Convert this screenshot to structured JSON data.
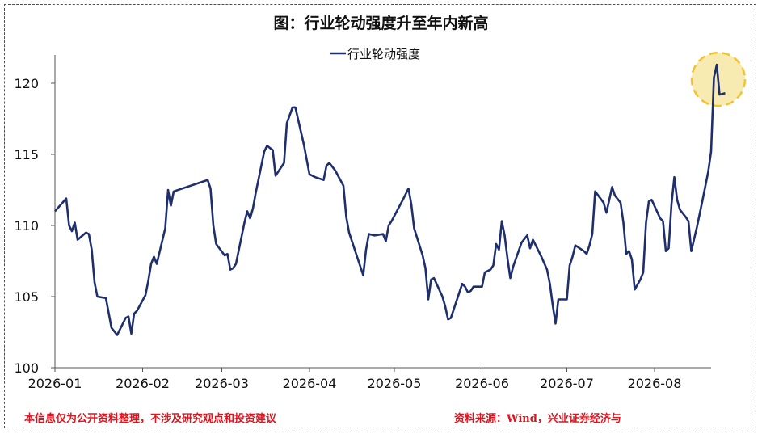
{
  "title": "图：行业轮动强度升至年内新高",
  "footnote_left": "本信息仅为公开资料整理，不涉及研究观点和投资建议",
  "footnote_right": "资料来源：Wind，兴业证券经济与",
  "colors": {
    "line": "#1f2f6e",
    "highlight_fill": "#f7e7a3",
    "highlight_stroke": "#f2c230",
    "footnote": "#e0141e",
    "frame": "#2f4fa8"
  },
  "chart_data": {
    "type": "line",
    "title": "图：行业轮动强度升至年内新高",
    "legend": {
      "position": "top-center",
      "entries": [
        "行业轮动强度"
      ]
    },
    "ylim": [
      100,
      122
    ],
    "yticks": [
      100,
      105,
      110,
      115,
      120
    ],
    "xticks": [
      "2026-01",
      "2026-02",
      "2026-03",
      "2026-04",
      "2026-05",
      "2026-06",
      "2026-07",
      "2026-08"
    ],
    "grid": false,
    "annotation": "highlight circle around latest peak",
    "series": [
      {
        "name": "行业轮动强度",
        "points": [
          [
            "2026-01-01",
            111.0
          ],
          [
            "2026-01-05",
            111.9
          ],
          [
            "2026-01-06",
            110.0
          ],
          [
            "2026-01-07",
            109.6
          ],
          [
            "2026-01-08",
            110.2
          ],
          [
            "2026-01-09",
            109.0
          ],
          [
            "2026-01-12",
            109.5
          ],
          [
            "2026-01-13",
            109.4
          ],
          [
            "2026-01-14",
            108.3
          ],
          [
            "2026-01-15",
            106.0
          ],
          [
            "2026-01-16",
            105.0
          ],
          [
            "2026-01-19",
            104.9
          ],
          [
            "2026-01-21",
            102.8
          ],
          [
            "2026-01-23",
            102.3
          ],
          [
            "2026-01-26",
            103.5
          ],
          [
            "2026-01-27",
            103.6
          ],
          [
            "2026-01-28",
            102.4
          ],
          [
            "2026-01-29",
            103.8
          ],
          [
            "2026-01-30",
            104.0
          ],
          [
            "2026-02-02",
            105.1
          ],
          [
            "2026-02-03",
            106.1
          ],
          [
            "2026-02-04",
            107.3
          ],
          [
            "2026-02-05",
            107.8
          ],
          [
            "2026-02-06",
            107.3
          ],
          [
            "2026-02-09",
            109.8
          ],
          [
            "2026-02-10",
            112.5
          ],
          [
            "2026-02-11",
            111.4
          ],
          [
            "2026-02-12",
            112.4
          ],
          [
            "2026-02-24",
            113.2
          ],
          [
            "2026-02-25",
            112.6
          ],
          [
            "2026-02-26",
            110.0
          ],
          [
            "2026-02-27",
            108.7
          ],
          [
            "2026-03-02",
            107.9
          ],
          [
            "2026-03-03",
            108.0
          ],
          [
            "2026-03-04",
            106.9
          ],
          [
            "2026-03-05",
            107.0
          ],
          [
            "2026-03-06",
            107.3
          ],
          [
            "2026-03-09",
            110.2
          ],
          [
            "2026-03-10",
            111.0
          ],
          [
            "2026-03-11",
            110.5
          ],
          [
            "2026-03-12",
            111.2
          ],
          [
            "2026-03-13",
            112.3
          ],
          [
            "2026-03-16",
            115.2
          ],
          [
            "2026-03-17",
            115.6
          ],
          [
            "2026-03-19",
            115.3
          ],
          [
            "2026-03-20",
            113.5
          ],
          [
            "2026-03-23",
            114.4
          ],
          [
            "2026-03-24",
            117.2
          ],
          [
            "2026-03-26",
            118.3
          ],
          [
            "2026-03-27",
            118.3
          ],
          [
            "2026-03-30",
            115.7
          ],
          [
            "2026-04-01",
            113.6
          ],
          [
            "2026-04-03",
            113.4
          ],
          [
            "2026-04-06",
            113.2
          ],
          [
            "2026-04-07",
            114.2
          ],
          [
            "2026-04-08",
            114.4
          ],
          [
            "2026-04-10",
            113.9
          ],
          [
            "2026-04-13",
            112.8
          ],
          [
            "2026-04-14",
            110.6
          ],
          [
            "2026-04-15",
            109.5
          ],
          [
            "2026-04-17",
            108.3
          ],
          [
            "2026-04-20",
            106.5
          ],
          [
            "2026-04-21",
            108.3
          ],
          [
            "2026-04-22",
            109.4
          ],
          [
            "2026-04-24",
            109.3
          ],
          [
            "2026-04-27",
            109.4
          ],
          [
            "2026-04-28",
            108.9
          ],
          [
            "2026-04-29",
            110.0
          ],
          [
            "2026-04-30",
            110.3
          ],
          [
            "2026-05-04",
            111.8
          ],
          [
            "2026-05-06",
            112.6
          ],
          [
            "2026-05-07",
            111.5
          ],
          [
            "2026-05-08",
            109.8
          ],
          [
            "2026-05-11",
            107.9
          ],
          [
            "2026-05-12",
            107.0
          ],
          [
            "2026-05-13",
            104.8
          ],
          [
            "2026-05-14",
            106.2
          ],
          [
            "2026-05-15",
            106.3
          ],
          [
            "2026-05-18",
            105.0
          ],
          [
            "2026-05-19",
            104.3
          ],
          [
            "2026-05-20",
            103.4
          ],
          [
            "2026-05-21",
            103.5
          ],
          [
            "2026-05-22",
            104.1
          ],
          [
            "2026-05-25",
            105.9
          ],
          [
            "2026-05-26",
            105.7
          ],
          [
            "2026-05-27",
            105.3
          ],
          [
            "2026-05-28",
            105.4
          ],
          [
            "2026-05-29",
            105.7
          ],
          [
            "2026-06-01",
            105.7
          ],
          [
            "2026-06-02",
            106.7
          ],
          [
            "2026-06-04",
            106.9
          ],
          [
            "2026-06-05",
            107.2
          ],
          [
            "2026-06-06",
            108.7
          ],
          [
            "2026-06-07",
            108.3
          ],
          [
            "2026-06-08",
            110.3
          ],
          [
            "2026-06-09",
            109.3
          ],
          [
            "2026-06-10",
            107.7
          ],
          [
            "2026-06-11",
            106.3
          ],
          [
            "2026-06-12",
            107.1
          ],
          [
            "2026-06-15",
            108.8
          ],
          [
            "2026-06-17",
            109.3
          ],
          [
            "2026-06-18",
            108.4
          ],
          [
            "2026-06-19",
            109.0
          ],
          [
            "2026-06-22",
            107.8
          ],
          [
            "2026-06-24",
            106.9
          ],
          [
            "2026-06-25",
            105.9
          ],
          [
            "2026-06-26",
            104.4
          ],
          [
            "2026-06-27",
            103.1
          ],
          [
            "2026-06-28",
            104.8
          ],
          [
            "2026-06-30",
            104.8
          ],
          [
            "2026-07-01",
            104.8
          ],
          [
            "2026-07-02",
            107.2
          ],
          [
            "2026-07-03",
            107.8
          ],
          [
            "2026-07-04",
            108.6
          ],
          [
            "2026-07-07",
            108.2
          ],
          [
            "2026-07-08",
            108.0
          ],
          [
            "2026-07-09",
            108.6
          ],
          [
            "2026-07-10",
            109.4
          ],
          [
            "2026-07-11",
            112.4
          ],
          [
            "2026-07-14",
            111.6
          ],
          [
            "2026-07-15",
            110.9
          ],
          [
            "2026-07-16",
            111.8
          ],
          [
            "2026-07-17",
            112.7
          ],
          [
            "2026-07-18",
            112.1
          ],
          [
            "2026-07-20",
            111.6
          ],
          [
            "2026-07-21",
            110.2
          ],
          [
            "2026-07-22",
            108.0
          ],
          [
            "2026-07-23",
            108.2
          ],
          [
            "2026-07-24",
            107.6
          ],
          [
            "2026-07-25",
            105.5
          ],
          [
            "2026-07-27",
            106.2
          ],
          [
            "2026-07-28",
            106.7
          ],
          [
            "2026-07-29",
            110.2
          ],
          [
            "2026-07-30",
            111.7
          ],
          [
            "2026-07-31",
            111.8
          ],
          [
            "2026-08-03",
            110.5
          ],
          [
            "2026-08-04",
            110.3
          ],
          [
            "2026-08-05",
            108.2
          ],
          [
            "2026-08-06",
            108.4
          ],
          [
            "2026-08-07",
            111.5
          ],
          [
            "2026-08-08",
            113.4
          ],
          [
            "2026-08-09",
            111.8
          ],
          [
            "2026-08-10",
            111.1
          ],
          [
            "2026-08-12",
            110.6
          ],
          [
            "2026-08-13",
            110.3
          ],
          [
            "2026-08-14",
            108.2
          ],
          [
            "2026-08-16",
            109.9
          ],
          [
            "2026-08-18",
            111.8
          ],
          [
            "2026-08-20",
            113.8
          ],
          [
            "2026-08-21",
            115.2
          ],
          [
            "2026-08-22",
            120.4
          ],
          [
            "2026-08-23",
            121.3
          ],
          [
            "2026-08-24",
            119.2
          ],
          [
            "2026-08-26",
            119.3
          ]
        ]
      }
    ]
  }
}
